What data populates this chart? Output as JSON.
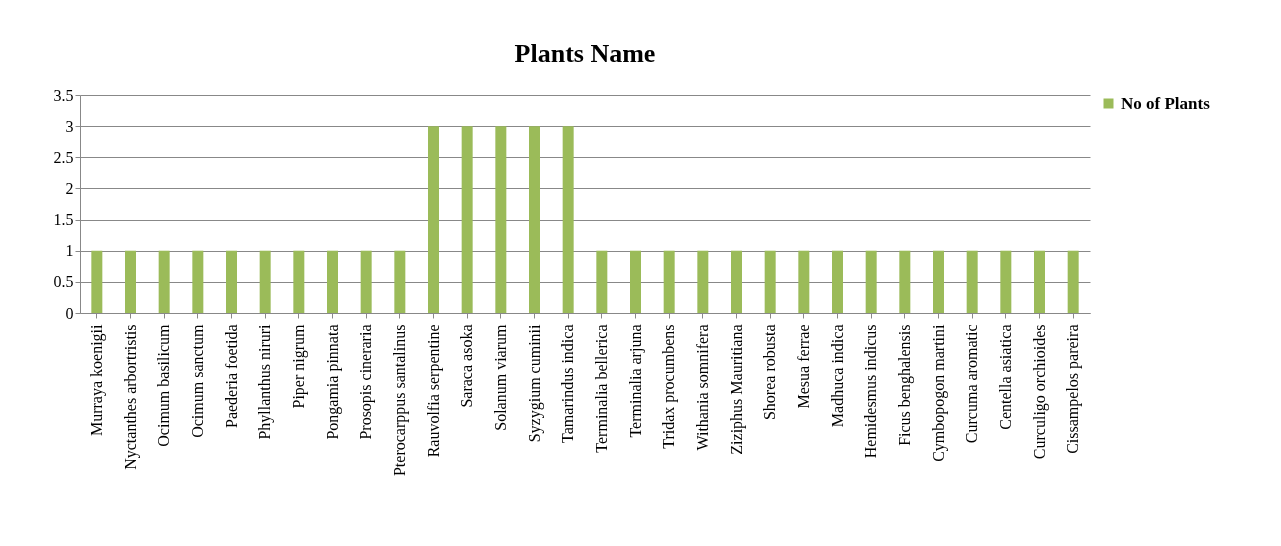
{
  "chart_data": {
    "type": "bar",
    "title": "Plants Name",
    "categories": [
      "Murraya koenigii",
      "Nyctanthes arbortristis",
      "Ocimum basilicum",
      "Ocimum sanctum",
      "Paederia foetida",
      "Phyllanthus niruri",
      "Piper nigrum",
      "Pongamia pinnata",
      "Prosopis cineraria",
      "Pterocarppus santalinus",
      "Rauvolfia serpentine",
      "Saraca asoka",
      "Solanum viarum",
      "Syzygium cuminii",
      "Tamarindus indica",
      "Terminalia bellerica",
      "Terminalia arjuna",
      "Tridax procumbens",
      "Withania somnifera",
      "Ziziphus Mauritiana",
      "Shorea robusta",
      "Mesua ferrae",
      "Madhuca indica",
      "Hemidesmus indicus",
      "Ficus benghalensis",
      "Cymbopogon martini",
      "Curcuma aromatic",
      "Centella asiatica",
      "Curculigo orchioides",
      "Cissampelos pareira"
    ],
    "series": [
      {
        "name": "No of Plants",
        "color": "#9bbb59",
        "values": [
          1,
          1,
          1,
          1,
          1,
          1,
          1,
          1,
          1,
          1,
          3,
          3,
          3,
          3,
          3,
          1,
          1,
          1,
          1,
          1,
          1,
          1,
          1,
          1,
          1,
          1,
          1,
          1,
          1,
          1
        ]
      }
    ],
    "ylim": [
      0,
      3.5
    ],
    "yticks": [
      0,
      0.5,
      1,
      1.5,
      2,
      2.5,
      3,
      3.5
    ],
    "grid": "y",
    "legend": "right"
  }
}
